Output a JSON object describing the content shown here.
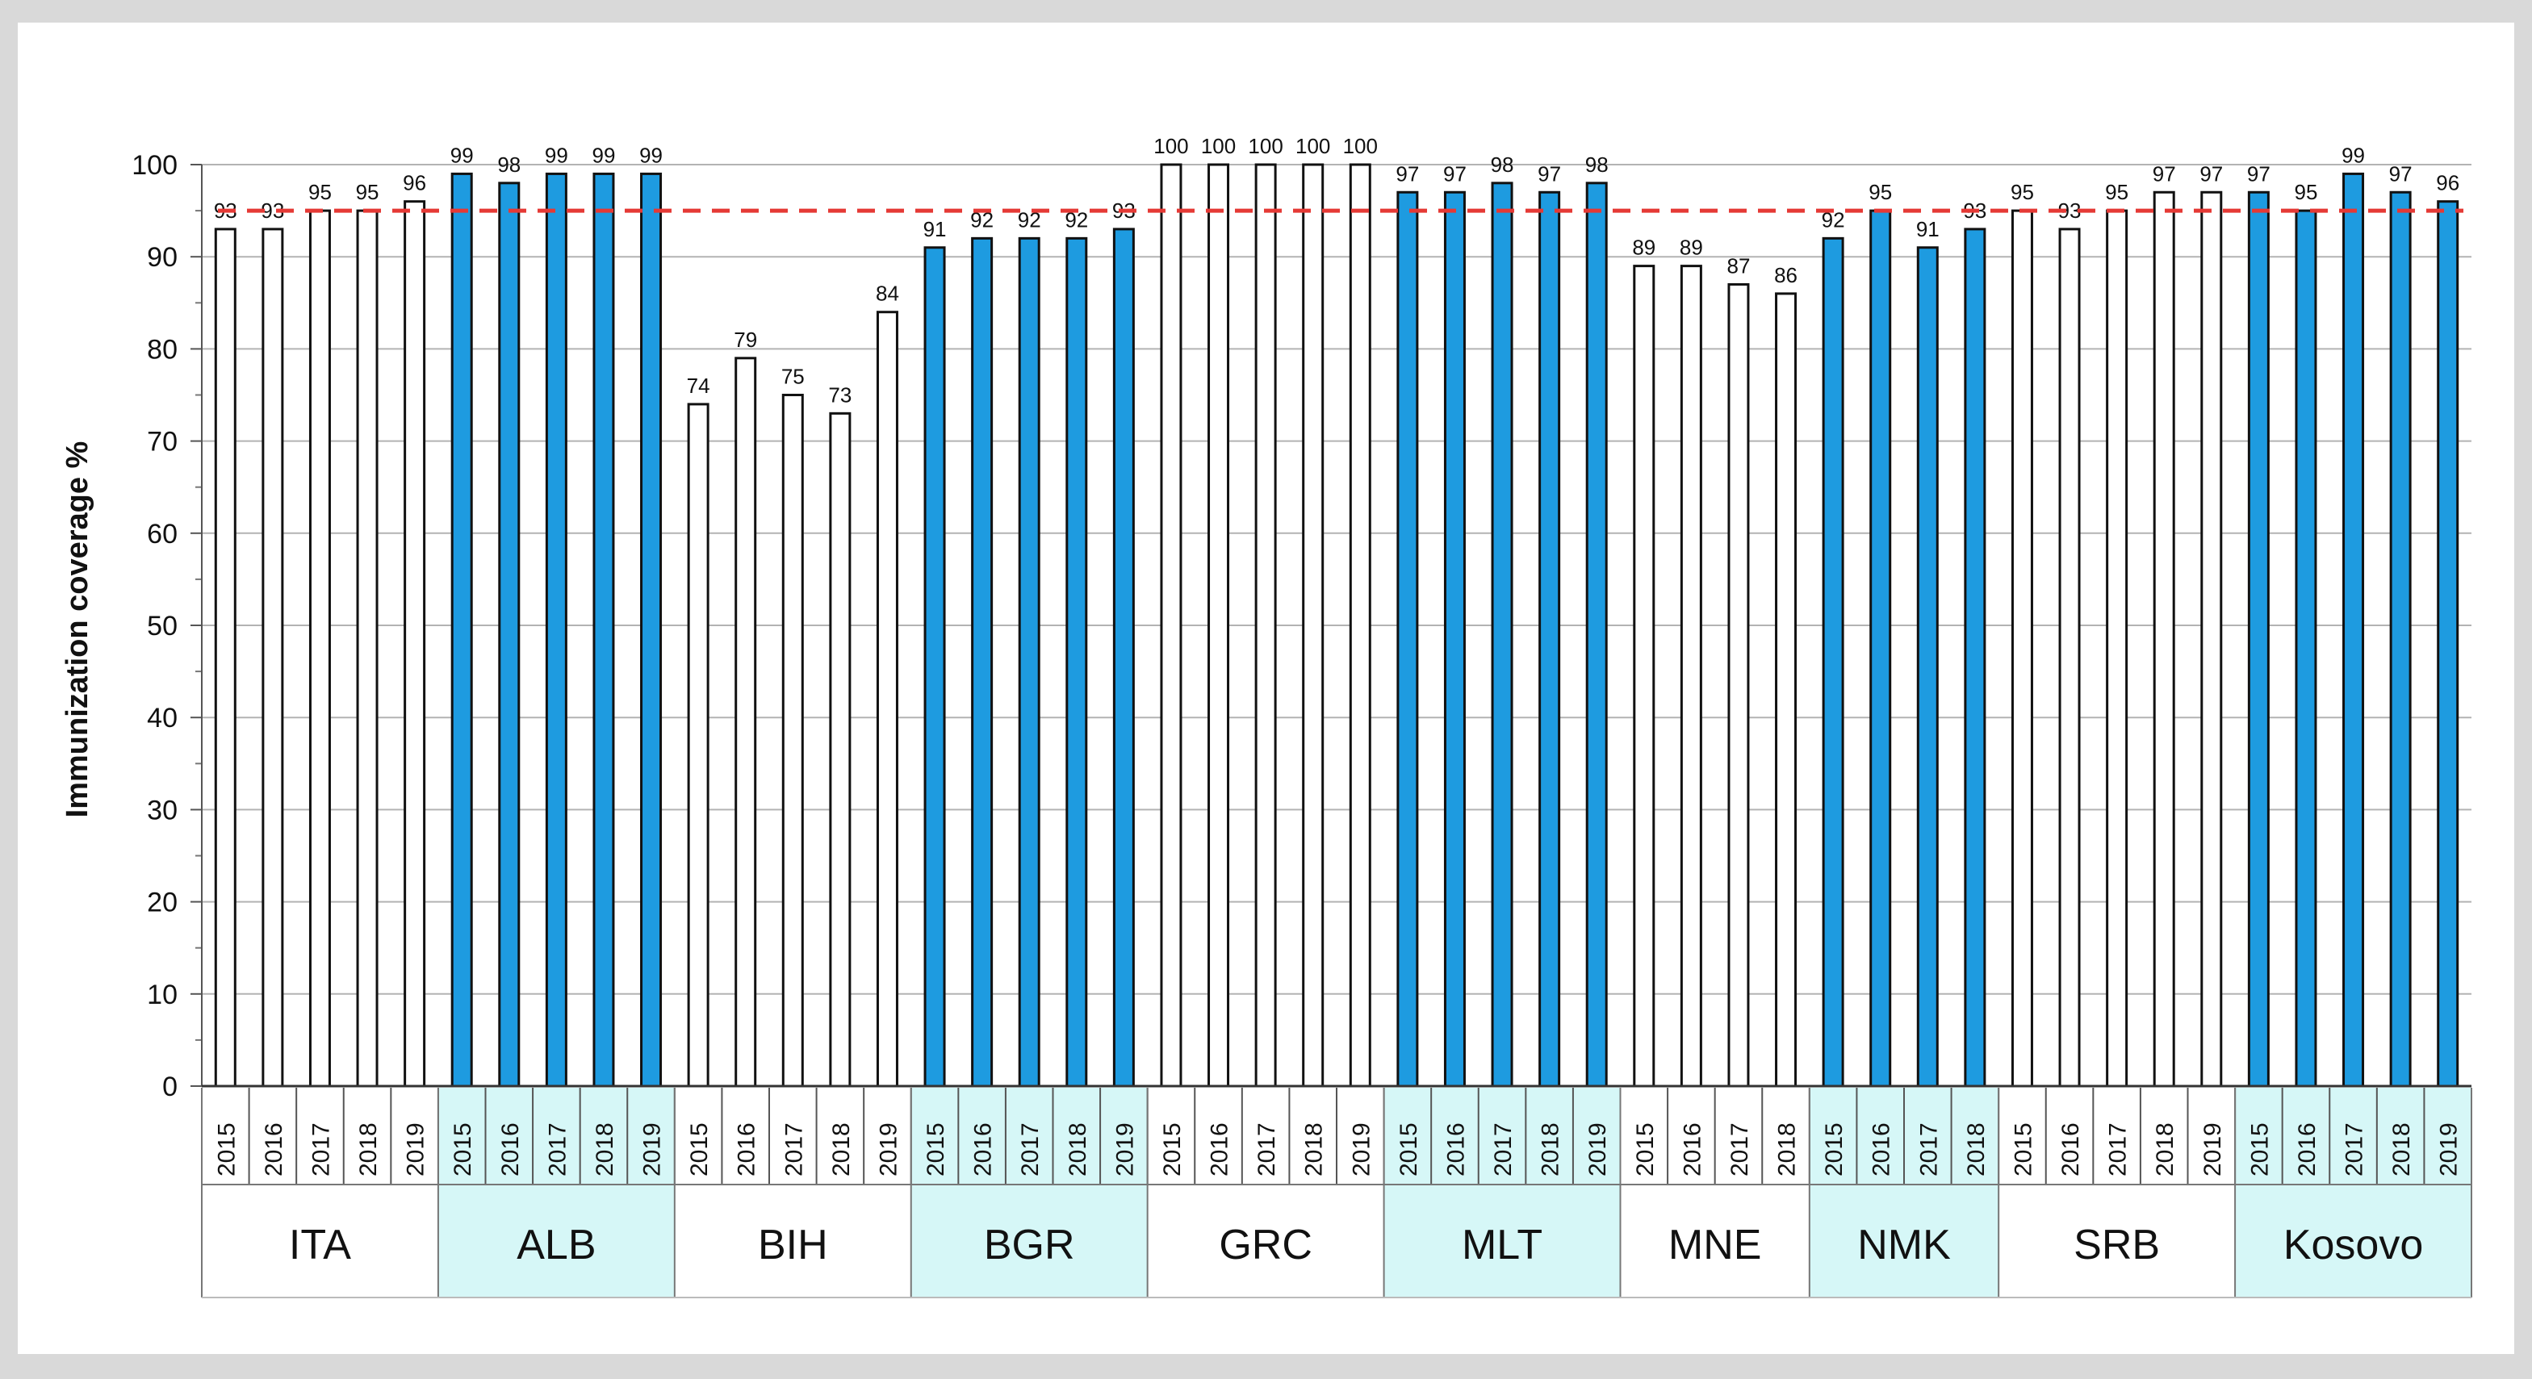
{
  "chart_data": {
    "type": "bar",
    "ylabel": "Immunization  coverage  %",
    "ylim": [
      0,
      100
    ],
    "yticks": [
      0,
      10,
      20,
      30,
      40,
      50,
      60,
      70,
      80,
      90,
      100
    ],
    "target_line": 95,
    "colors": {
      "blue": "#1e9be0",
      "white": "#ffffff",
      "target": "#e53935",
      "cyan_band": "#d6f7f7",
      "outer_bg": "#d9d9d9",
      "plot_bg": "#ffffff",
      "grid": "#b3b3b3"
    },
    "groups": [
      {
        "country": "ITA",
        "fill": "white",
        "years": [
          "2015",
          "2016",
          "2017",
          "2018",
          "2019"
        ],
        "values": [
          93,
          93,
          95,
          95,
          96
        ],
        "labels": [
          "93",
          "93",
          "95",
          "95",
          "96"
        ]
      },
      {
        "country": "ALB",
        "fill": "blue",
        "years": [
          "2015",
          "2016",
          "2017",
          "2018",
          "2019"
        ],
        "values": [
          99,
          98,
          99,
          99,
          99
        ],
        "labels": [
          "99",
          "98",
          "99",
          "99",
          "99"
        ]
      },
      {
        "country": "BIH",
        "fill": "white",
        "years": [
          "2015",
          "2016",
          "2017",
          "2018",
          "2019"
        ],
        "values": [
          74,
          79,
          75,
          73,
          84
        ],
        "labels": [
          "74",
          "79",
          "75",
          "73",
          "84"
        ]
      },
      {
        "country": "BGR",
        "fill": "blue",
        "years": [
          "2015",
          "2016",
          "2017",
          "2018",
          "2019"
        ],
        "values": [
          91,
          92,
          92,
          92,
          93
        ],
        "labels": [
          "91",
          "92",
          "92",
          "92",
          "93"
        ]
      },
      {
        "country": "GRC",
        "fill": "white",
        "years": [
          "2015",
          "2016",
          "2017",
          "2018",
          "2019"
        ],
        "values": [
          100,
          100,
          100,
          100,
          100
        ],
        "labels": [
          "100",
          "100",
          "100",
          "100",
          "100"
        ]
      },
      {
        "country": "MLT",
        "fill": "blue",
        "years": [
          "2015",
          "2016",
          "2017",
          "2018",
          "2019"
        ],
        "values": [
          97,
          97,
          98,
          97,
          98
        ],
        "labels": [
          "97",
          "97",
          "98",
          "97",
          "98"
        ]
      },
      {
        "country": "MNE",
        "fill": "white",
        "years": [
          "2015",
          "2016",
          "2017",
          "2018"
        ],
        "values": [
          89,
          89,
          87,
          86
        ],
        "labels": [
          "89",
          "89",
          "87",
          "86"
        ]
      },
      {
        "country": "NMK",
        "fill": "blue",
        "years": [
          "2015",
          "2016",
          "2017",
          "2018"
        ],
        "values": [
          92,
          95,
          91,
          93
        ],
        "labels": [
          "92",
          "95",
          "91",
          "93"
        ]
      },
      {
        "country": "SRB",
        "fill": "white",
        "years": [
          "2015",
          "2016",
          "2017",
          "2018",
          "2019"
        ],
        "values": [
          95,
          93,
          95,
          97,
          97
        ],
        "labels": [
          "95",
          "93",
          "95",
          "97",
          "97"
        ]
      },
      {
        "country": "Kosovo",
        "fill": "blue",
        "years": [
          "2015",
          "2016",
          "2017",
          "2018",
          "2019"
        ],
        "values": [
          97,
          95,
          99,
          97,
          96
        ],
        "labels": [
          "97",
          "95",
          "99",
          "97",
          "96"
        ]
      }
    ]
  }
}
